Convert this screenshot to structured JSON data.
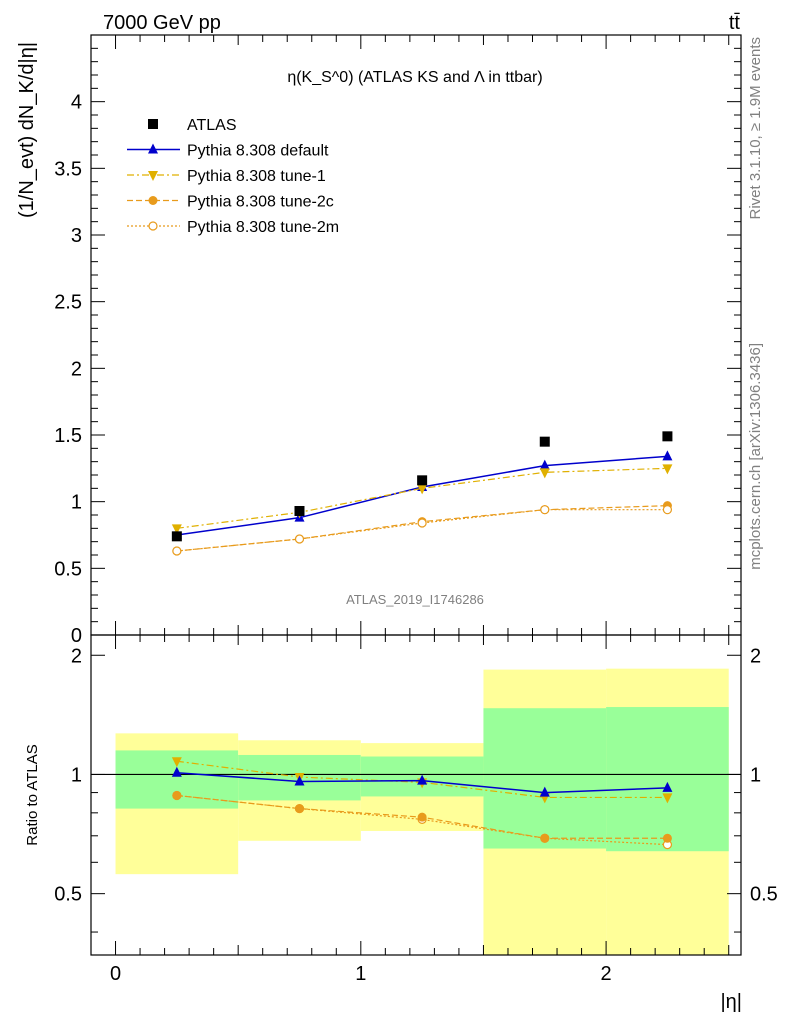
{
  "header": {
    "left": "7000 GeV pp",
    "right": "tt̄"
  },
  "side_labels": {
    "rivet": "Rivet 3.1.10, ≥ 1.9M events",
    "mcplots": "mcplots.cern.ch [arXiv:1306.3436]"
  },
  "watermark": "ATLAS_2019_I1746286",
  "colors": {
    "atlas": "#000000",
    "default": "#0000cc",
    "tune1": "#e0b000",
    "tune2c": "#e89b1c",
    "tune2m": "#e89b1c",
    "band_inner": "#99ff99",
    "band_outer": "#ffff99"
  },
  "chart_data": [
    {
      "type": "scatter",
      "title": "η(K_S^0) (ATLAS KS and Λ in ttbar)",
      "ylabel": "(1/N_evt) dN_K/d|η|",
      "xlabel": "",
      "xlim": [
        -0.1,
        2.55
      ],
      "ylim": [
        0,
        4.5
      ],
      "yticks": [
        0,
        0.5,
        1,
        1.5,
        2,
        2.5,
        3,
        3.5,
        4
      ],
      "x": [
        0.25,
        0.75,
        1.25,
        1.75,
        2.25
      ],
      "legend_position": "top-left",
      "series": [
        {
          "name": "ATLAS",
          "marker": "square",
          "values": [
            0.74,
            0.93,
            1.16,
            1.45,
            1.49
          ]
        },
        {
          "name": "Pythia 8.308 default",
          "marker": "triangle-up",
          "line": "solid",
          "values": [
            0.75,
            0.88,
            1.11,
            1.27,
            1.34
          ]
        },
        {
          "name": "Pythia 8.308 tune-1",
          "marker": "triangle-down",
          "line": "dashdot",
          "values": [
            0.8,
            0.92,
            1.1,
            1.22,
            1.25
          ]
        },
        {
          "name": "Pythia 8.308 tune-2c",
          "marker": "circle",
          "line": "dashed",
          "values": [
            0.63,
            0.72,
            0.85,
            0.94,
            0.97
          ]
        },
        {
          "name": "Pythia 8.308 tune-2m",
          "marker": "circle-open",
          "line": "dotted",
          "values": [
            0.63,
            0.72,
            0.84,
            0.94,
            0.94
          ]
        }
      ]
    },
    {
      "type": "scatter",
      "title": "",
      "ylabel": "Ratio to ATLAS",
      "xlabel": "|η|",
      "xlim": [
        -0.1,
        2.55
      ],
      "ylim": [
        0.35,
        2.25
      ],
      "yticks": [
        0.5,
        1,
        2
      ],
      "xticks": [
        0,
        1,
        2
      ],
      "x": [
        0.25,
        0.75,
        1.25,
        1.75,
        2.25
      ],
      "bands": [
        {
          "x0": 0.0,
          "x1": 0.5,
          "inner": [
            0.82,
            1.15
          ],
          "outer": [
            0.56,
            1.27
          ]
        },
        {
          "x0": 0.5,
          "x1": 1.0,
          "inner": [
            0.86,
            1.12
          ],
          "outer": [
            0.68,
            1.22
          ]
        },
        {
          "x0": 1.0,
          "x1": 1.5,
          "inner": [
            0.88,
            1.11
          ],
          "outer": [
            0.72,
            1.2
          ]
        },
        {
          "x0": 1.5,
          "x1": 2.0,
          "inner": [
            0.65,
            1.47
          ],
          "outer": [
            0.35,
            1.84
          ]
        },
        {
          "x0": 2.0,
          "x1": 2.5,
          "inner": [
            0.64,
            1.48
          ],
          "outer": [
            0.35,
            1.85
          ]
        }
      ],
      "series": [
        {
          "name": "Pythia 8.308 default",
          "values": [
            1.01,
            0.96,
            0.965,
            0.9,
            0.925
          ]
        },
        {
          "name": "Pythia 8.308 tune-1",
          "values": [
            1.08,
            0.985,
            0.955,
            0.875,
            0.875
          ]
        },
        {
          "name": "Pythia 8.308 tune-2c",
          "values": [
            0.885,
            0.82,
            0.78,
            0.69,
            0.69
          ]
        },
        {
          "name": "Pythia 8.308 tune-2m",
          "values": [
            0.885,
            0.82,
            0.77,
            0.69,
            0.665
          ]
        }
      ]
    }
  ]
}
